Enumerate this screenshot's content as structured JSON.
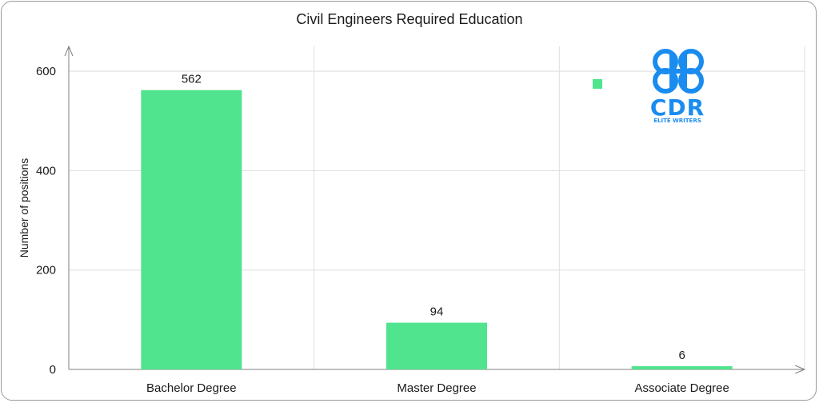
{
  "chart_data": {
    "type": "bar",
    "title": "Civil Engineers Required Education",
    "xlabel": "",
    "ylabel": "Number of positions",
    "categories": [
      "Bachelor Degree",
      "Master Degree",
      "Associate Degree"
    ],
    "values": [
      562,
      94,
      6
    ],
    "ylim": [
      0,
      650
    ],
    "yticks": [
      0,
      200,
      400,
      600
    ],
    "grid": true,
    "legend": "top-right",
    "bar_color": "#50e48e",
    "data_labels": [
      "562",
      "94",
      "6"
    ]
  },
  "logo": {
    "name": "CDR Elite Writers",
    "text": "CDR",
    "tagline": "ELITE WRITERS",
    "color": "#1a8cf0"
  },
  "colors": {
    "grid": "#dedede",
    "axis": "#808080",
    "text": "#1a1a1a"
  }
}
